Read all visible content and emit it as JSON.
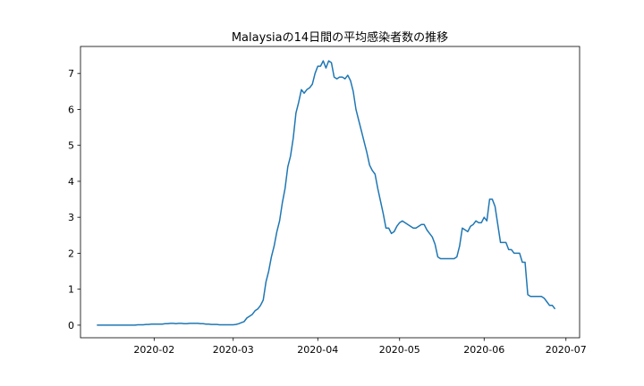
{
  "chart_data": {
    "type": "line",
    "title": "Malaysiaの14日間の平均感染者数の推移",
    "xlabel": "",
    "ylabel": "",
    "x_start": "2020-01-11",
    "x_end": "2020-06-30",
    "xlim": [
      "2020-01-05",
      "2020-07-06"
    ],
    "ylim": [
      -0.35,
      7.75
    ],
    "xticks": [
      "2020-02",
      "2020-03",
      "2020-04",
      "2020-05",
      "2020-06",
      "2020-07"
    ],
    "xtick_dates": [
      "2020-02-01",
      "2020-03-01",
      "2020-04-01",
      "2020-05-01",
      "2020-06-01",
      "2020-07-01"
    ],
    "yticks": [
      0,
      1,
      2,
      3,
      4,
      5,
      6,
      7
    ],
    "grid": false,
    "legend": "none",
    "line_color": "#1f77b4",
    "series": [
      {
        "values": [
          0,
          0,
          0,
          0,
          0,
          0,
          0,
          0,
          0,
          0,
          0,
          0,
          0,
          0,
          0,
          0.01,
          0.01,
          0.01,
          0.02,
          0.02,
          0.03,
          0.03,
          0.03,
          0.03,
          0.03,
          0.04,
          0.04,
          0.05,
          0.05,
          0.04,
          0.05,
          0.05,
          0.04,
          0.04,
          0.05,
          0.05,
          0.05,
          0.05,
          0.04,
          0.04,
          0.03,
          0.03,
          0.02,
          0.02,
          0.02,
          0.01,
          0.01,
          0.01,
          0.01,
          0.01,
          0.01,
          0.02,
          0.04,
          0.07,
          0.1,
          0.2,
          0.25,
          0.3,
          0.4,
          0.45,
          0.55,
          0.7,
          1.2,
          1.5,
          1.9,
          2.2,
          2.6,
          2.9,
          3.4,
          3.8,
          4.4,
          4.7,
          5.2,
          5.9,
          6.2,
          6.55,
          6.45,
          6.55,
          6.6,
          6.7,
          7.0,
          7.2,
          7.2,
          7.35,
          7.15,
          7.35,
          7.3,
          6.9,
          6.85,
          6.9,
          6.9,
          6.85,
          6.95,
          6.8,
          6.5,
          6.0,
          5.7,
          5.4,
          5.1,
          4.8,
          4.45,
          4.3,
          4.2,
          3.8,
          3.45,
          3.1,
          2.7,
          2.7,
          2.55,
          2.6,
          2.75,
          2.85,
          2.9,
          2.85,
          2.8,
          2.75,
          2.7,
          2.7,
          2.75,
          2.8,
          2.8,
          2.65,
          2.55,
          2.45,
          2.25,
          1.9,
          1.85,
          1.85,
          1.85,
          1.85,
          1.85,
          1.85,
          1.9,
          2.2,
          2.7,
          2.65,
          2.6,
          2.75,
          2.8,
          2.9,
          2.85,
          2.85,
          3.0,
          2.9,
          3.5,
          3.5,
          3.3,
          2.8,
          2.3,
          2.3,
          2.3,
          2.1,
          2.1,
          2.0,
          2.0,
          2.0,
          1.75,
          1.75,
          0.85,
          0.8,
          0.8,
          0.8,
          0.8,
          0.8,
          0.75,
          0.65,
          0.55,
          0.55,
          0.45
        ]
      }
    ]
  }
}
